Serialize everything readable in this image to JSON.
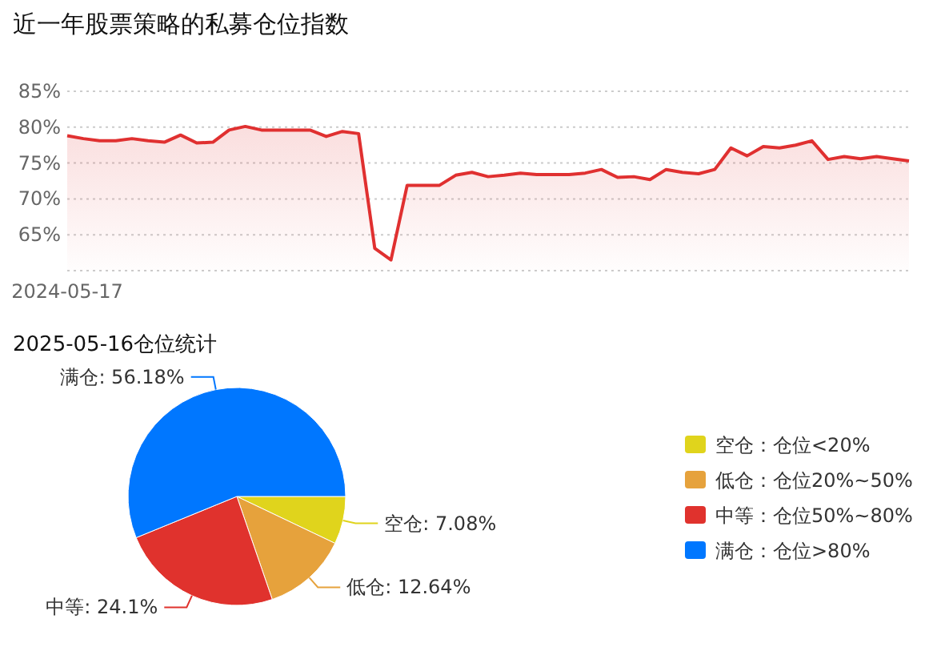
{
  "chart_data": [
    {
      "type": "area",
      "title": "近一年股票策略的私募仓位指数",
      "categories": [
        "2024-05-17",
        null,
        null,
        null,
        null,
        null,
        null,
        null,
        null,
        null,
        null,
        null,
        null,
        null,
        null,
        null,
        null,
        null,
        null,
        null,
        null,
        null,
        null,
        null,
        null,
        null,
        null,
        null,
        null,
        null,
        null,
        null,
        null,
        null,
        null,
        null,
        null,
        null,
        null,
        null,
        null,
        null,
        null,
        null,
        null,
        null,
        null,
        null,
        null,
        null,
        null,
        null,
        null
      ],
      "series": [
        {
          "color": "#e03030",
          "values": [
            78.8,
            78.4,
            78.1,
            78.1,
            78.4,
            78.1,
            77.9,
            78.9,
            77.8,
            77.9,
            79.6,
            80.1,
            79.6,
            79.6,
            79.6,
            79.6,
            78.7,
            79.4,
            79.1,
            63.1,
            61.5,
            71.9,
            71.9,
            71.9,
            73.3,
            73.7,
            73.1,
            73.3,
            73.6,
            73.4,
            73.4,
            73.4,
            73.6,
            74.1,
            73.0,
            73.1,
            72.7,
            74.1,
            73.7,
            73.5,
            74.1,
            77.1,
            76.0,
            77.3,
            77.1,
            77.5,
            78.1,
            75.5,
            75.9,
            75.6,
            75.9,
            75.6,
            75.3
          ]
        }
      ],
      "ylim": [
        60,
        85
      ],
      "yticks": [
        {
          "value": 60,
          "label": null
        },
        {
          "value": 65,
          "label": "65%"
        },
        {
          "value": 70,
          "label": "70%"
        },
        {
          "value": 75,
          "label": "75%"
        },
        {
          "value": 80,
          "label": "80%"
        },
        {
          "value": 85,
          "label": "85%"
        }
      ],
      "grid": "y"
    },
    {
      "type": "pie",
      "title": "2025-05-16仓位统计",
      "categories": [
        "空仓：仓位<20%",
        "低仓：仓位20%~50%",
        "中等：仓位50%~80%",
        "满仓：仓位>80%"
      ],
      "values": [
        7.08,
        12.64,
        24.1,
        56.18
      ],
      "value_labels": [
        "空仓: 7.08%",
        "低仓: 12.64%",
        "中等: 24.1%",
        "满仓: 56.18%"
      ],
      "colors": [
        "#e0d41c",
        "#e6a23c",
        "#e0322d",
        "#0077ff"
      ],
      "legend": "right"
    }
  ]
}
